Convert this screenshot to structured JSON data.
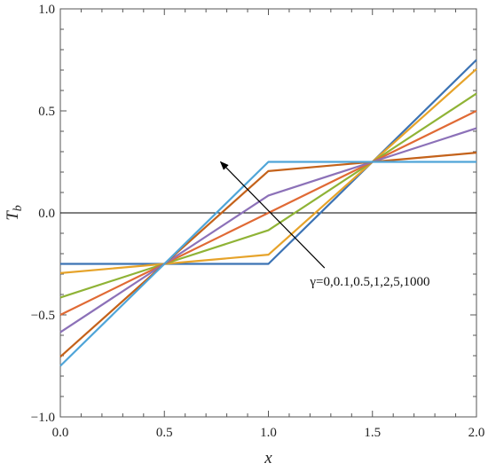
{
  "chart_data": {
    "type": "line",
    "title": "",
    "xlabel": "x",
    "ylabel_main": "T",
    "ylabel_sub": "b",
    "xlim": [
      0.0,
      2.0
    ],
    "ylim": [
      -1.0,
      1.0
    ],
    "x_ticks": [
      0.0,
      0.5,
      1.0,
      1.5,
      2.0
    ],
    "x_tick_labels": [
      "0.0",
      "0.5",
      "1.0",
      "1.5",
      "2.0"
    ],
    "y_ticks": [
      -1.0,
      -0.5,
      0.0,
      0.5,
      1.0
    ],
    "y_tick_labels": [
      "−1.0",
      "−0.5",
      "0.0",
      "0.5",
      "1.0"
    ],
    "grid": false,
    "zero_line": true,
    "x": [
      0.0,
      0.5,
      1.0,
      1.5,
      2.0
    ],
    "series": [
      {
        "values": [
          -0.25,
          -0.25,
          -0.25,
          0.25,
          0.75
        ],
        "color": "#3c73b4"
      },
      {
        "values": [
          -0.295,
          -0.25,
          -0.205,
          0.25,
          0.705
        ],
        "color": "#e6a32a"
      },
      {
        "values": [
          -0.415,
          -0.25,
          -0.085,
          0.25,
          0.585
        ],
        "color": "#8fb336"
      },
      {
        "values": [
          -0.5,
          -0.25,
          0.0,
          0.25,
          0.5
        ],
        "color": "#e06a35"
      },
      {
        "values": [
          -0.585,
          -0.25,
          0.085,
          0.25,
          0.415
        ],
        "color": "#8c71b8"
      },
      {
        "values": [
          -0.705,
          -0.25,
          0.205,
          0.25,
          0.295
        ],
        "color": "#c4621a"
      },
      {
        "values": [
          -0.75,
          -0.25,
          0.25,
          0.25,
          0.25
        ],
        "color": "#4fa5d8"
      }
    ],
    "annotation": {
      "text": "γ=0,0.1,0.5,1,2,5,1000",
      "arrow_from": [
        1.27,
        -0.27
      ],
      "arrow_to": [
        0.77,
        0.25
      ],
      "text_at": [
        1.2,
        -0.27
      ]
    }
  }
}
